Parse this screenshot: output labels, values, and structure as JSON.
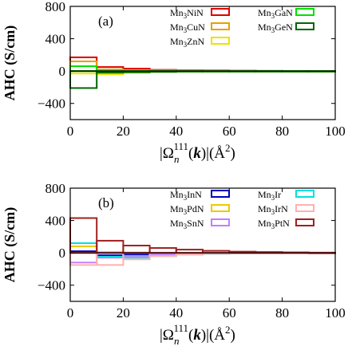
{
  "chart_data": [
    {
      "type": "bar",
      "panel_label": "(a)",
      "ylabel": "AHC (S/cm)",
      "xlabel": "|Ω",
      "xlim": [
        0,
        100
      ],
      "ylim": [
        -600,
        800
      ],
      "xticks": [
        "0",
        "20",
        "40",
        "60",
        "80",
        "100"
      ],
      "yticks": [
        "800",
        "400",
        "0",
        "-400"
      ],
      "bin_edges": [
        0,
        10,
        20,
        30,
        40,
        50,
        60,
        70,
        80,
        90,
        100
      ],
      "series": [
        {
          "name": "Mn3NiN",
          "base": "Mn",
          "sub": "3",
          "tail": "NiN",
          "color": "#e00000",
          "values": [
            170,
            50,
            30,
            15,
            10,
            8,
            5,
            3,
            2,
            1
          ]
        },
        {
          "name": "Mn3CuN",
          "base": "Mn",
          "sub": "3",
          "tail": "CuN",
          "color": "#e8a000",
          "values": [
            120,
            20,
            10,
            8,
            5,
            3,
            2,
            1,
            1,
            0
          ]
        },
        {
          "name": "Mn3ZnN",
          "base": "Mn",
          "sub": "3",
          "tail": "ZnN",
          "color": "#f0e000",
          "values": [
            -30,
            -40,
            -20,
            -10,
            -5,
            -4,
            -3,
            -2,
            -1,
            -1
          ]
        },
        {
          "name": "Mn3GaN",
          "base": "Mn",
          "sub": "3",
          "tail": "GaN",
          "color": "#00e000",
          "values": [
            60,
            -15,
            -10,
            -6,
            -4,
            -3,
            -2,
            -1,
            -1,
            0
          ]
        },
        {
          "name": "Mn3GeN",
          "base": "Mn",
          "sub": "3",
          "tail": "GeN",
          "color": "#006400",
          "values": [
            -210,
            -20,
            -15,
            -10,
            -6,
            -4,
            -3,
            -2,
            -1,
            -1
          ]
        }
      ]
    },
    {
      "type": "bar",
      "panel_label": "(b)",
      "ylabel": "AHC (S/cm)",
      "xlabel": "|Ω",
      "xlim": [
        0,
        100
      ],
      "ylim": [
        -600,
        800
      ],
      "xticks": [
        "0",
        "20",
        "40",
        "60",
        "80",
        "100"
      ],
      "yticks": [
        "800",
        "400",
        "0",
        "-400"
      ],
      "bin_edges": [
        0,
        10,
        20,
        30,
        40,
        50,
        60,
        70,
        80,
        90,
        100
      ],
      "series": [
        {
          "name": "Mn3InN",
          "base": "Mn",
          "sub": "3",
          "tail": "InN",
          "color": "#0000c0",
          "values": [
            20,
            -30,
            -20,
            -10,
            -5,
            -4,
            -3,
            -2,
            -1,
            -1
          ]
        },
        {
          "name": "Mn3PdN",
          "base": "Mn",
          "sub": "3",
          "tail": "PdN",
          "color": "#f0c800",
          "values": [
            80,
            10,
            5,
            3,
            2,
            1,
            1,
            0,
            0,
            0
          ]
        },
        {
          "name": "Mn3SnN",
          "base": "Mn",
          "sub": "3",
          "tail": "SnN",
          "color": "#c080ff",
          "values": [
            -120,
            -60,
            -40,
            -20,
            -10,
            -8,
            -5,
            -3,
            -2,
            -1
          ]
        },
        {
          "name": "Mn3Ir",
          "base": "Mn",
          "sub": "3",
          "tail": "Ir",
          "color": "#00e0e0",
          "values": [
            120,
            -50,
            -60,
            -40,
            -20,
            -12,
            -8,
            -5,
            -3,
            -2
          ]
        },
        {
          "name": "Mn3IrN",
          "base": "Mn",
          "sub": "3",
          "tail": "IrN",
          "color": "#ffb0b0",
          "values": [
            -150,
            -150,
            -80,
            -40,
            -20,
            -10,
            -6,
            -4,
            -2,
            -1
          ]
        },
        {
          "name": "Mn3PtN",
          "base": "Mn",
          "sub": "3",
          "tail": "PtN",
          "color": "#a02020",
          "values": [
            430,
            150,
            90,
            60,
            40,
            25,
            15,
            10,
            6,
            3
          ]
        }
      ]
    }
  ]
}
